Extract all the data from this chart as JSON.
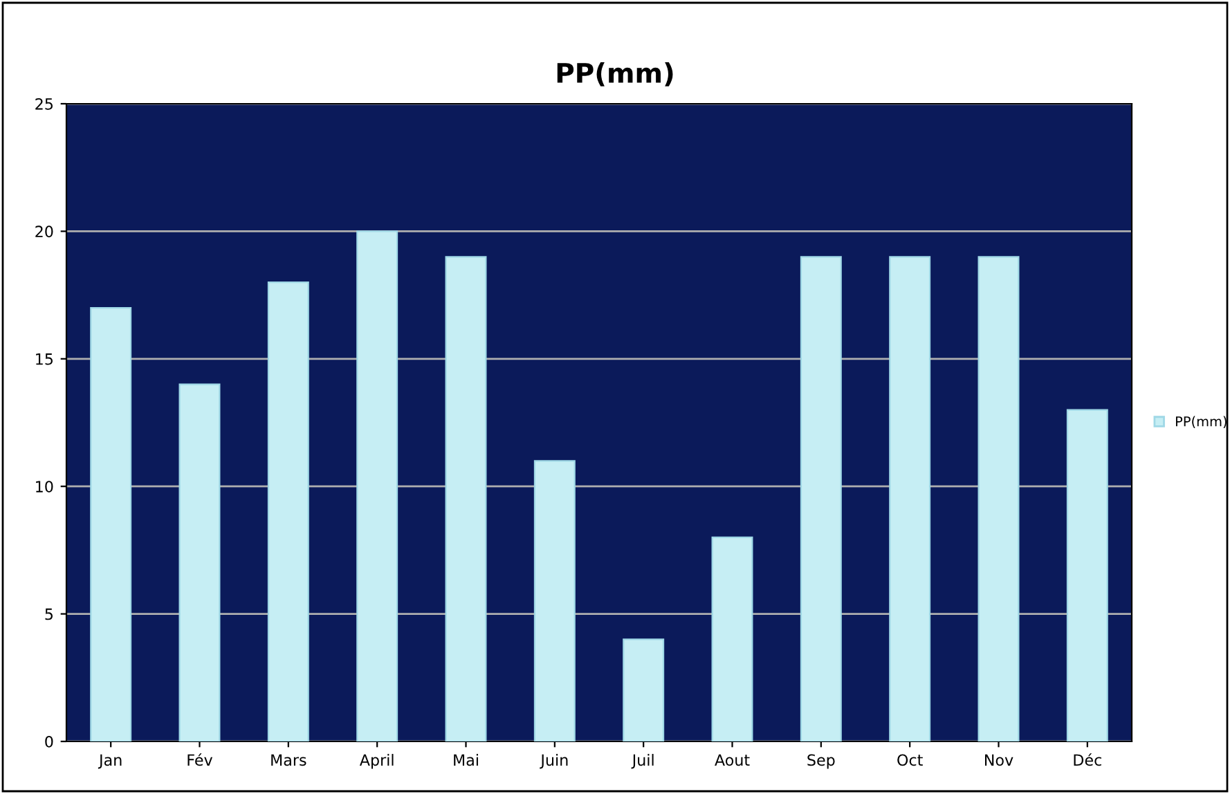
{
  "chart_data": {
    "type": "bar",
    "title": "PP(mm)",
    "categories": [
      "Jan",
      "Fév",
      "Mars",
      "April",
      "Mai",
      "Juin",
      "Juil",
      "Aout",
      "Sep",
      "Oct",
      "Nov",
      "Déc"
    ],
    "series": [
      {
        "name": "PP(mm)",
        "color": "#c6eef4",
        "values": [
          17,
          14,
          18,
          20,
          19,
          11,
          4,
          8,
          19,
          19,
          19,
          13
        ]
      }
    ],
    "ylim": [
      0,
      25
    ],
    "yticks": [
      0,
      5,
      10,
      15,
      20,
      25
    ],
    "grid": "y",
    "legend": "right"
  }
}
